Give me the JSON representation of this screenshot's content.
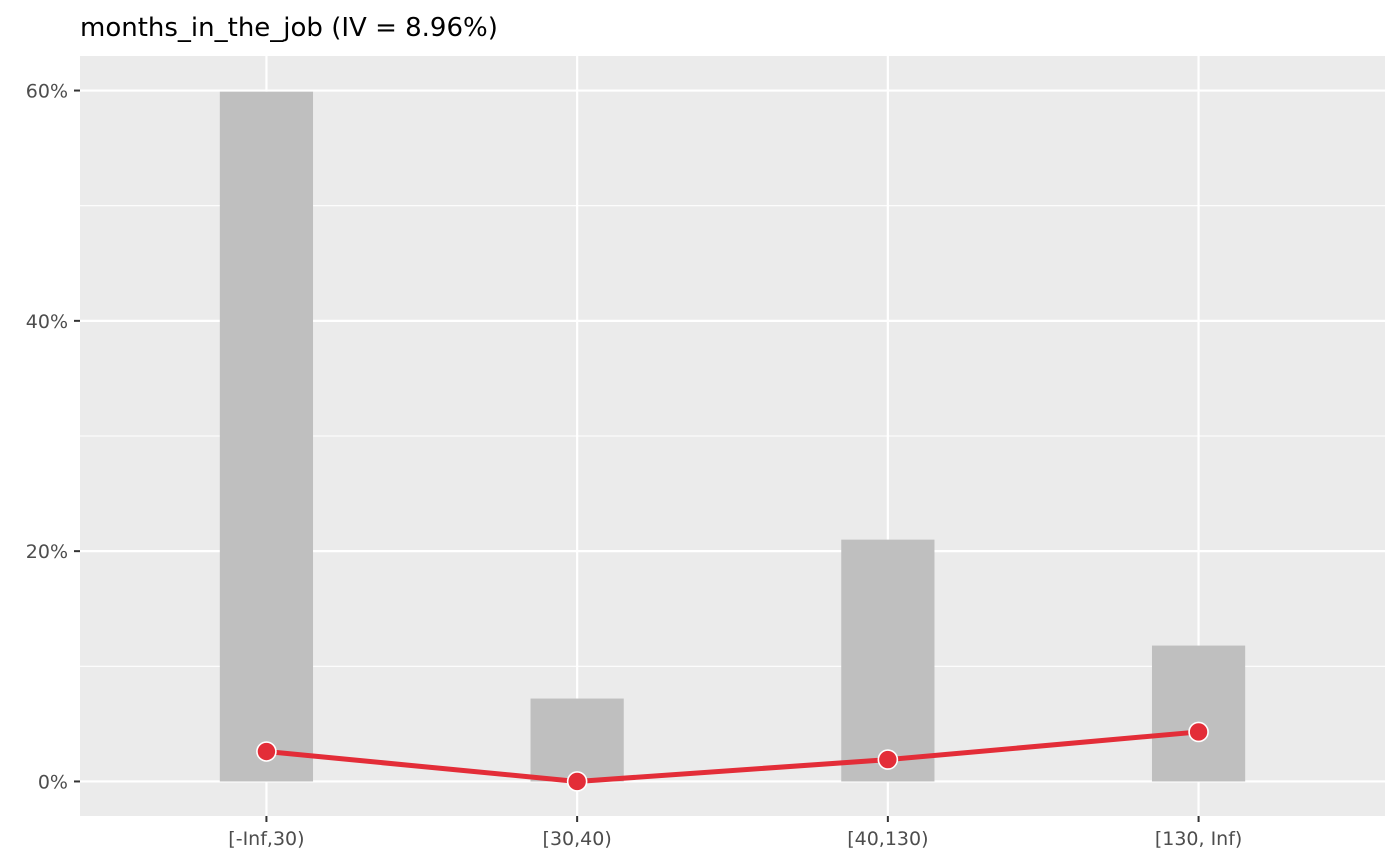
{
  "chart_data": {
    "type": "bar",
    "title": "months_in_the_job (IV = 8.96%)",
    "xlabel": "",
    "ylabel": "",
    "categories": [
      "[-Inf,30)",
      "[30,40)",
      "[40,130)",
      "[130, Inf)"
    ],
    "series": [
      {
        "type": "bar",
        "values": [
          59.9,
          7.2,
          21.0,
          11.8
        ]
      },
      {
        "type": "line",
        "values": [
          2.6,
          0.0,
          1.9,
          4.3
        ]
      }
    ],
    "ylim": [
      -3.0,
      63.0
    ],
    "y_ticks": [
      {
        "value": 0,
        "label": "0%"
      },
      {
        "value": 20,
        "label": "20%"
      },
      {
        "value": 40,
        "label": "40%"
      },
      {
        "value": 60,
        "label": "60%"
      }
    ],
    "grid": true,
    "legend": "none",
    "colors": {
      "panel_background": "#ebebeb",
      "grid": "#ffffff",
      "bar_fill": "#bfbfbf",
      "line": "#e32d38",
      "point_fill": "#e32d38",
      "point_stroke": "#ffffff"
    }
  }
}
